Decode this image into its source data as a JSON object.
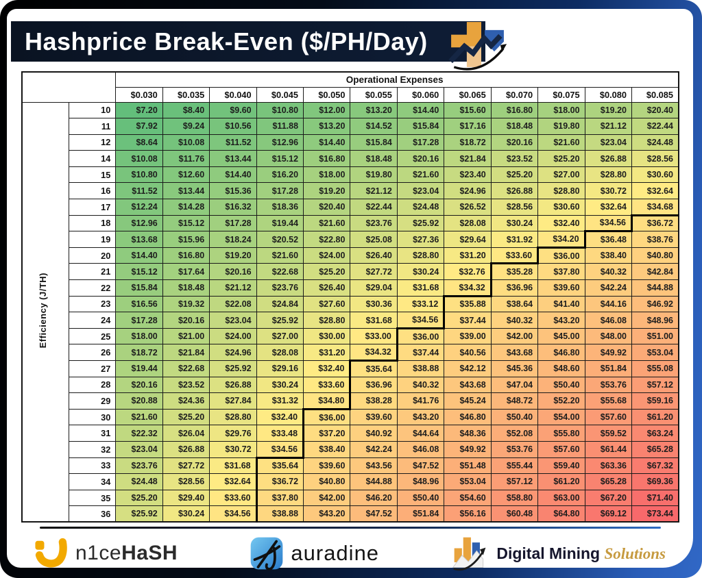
{
  "header": {
    "title": "Hashprice Break-Even ($/PH/Day)"
  },
  "chart_data": {
    "type": "heatmap",
    "title": "Hashprice Break-Even ($/PH/Day)",
    "x_label": "Operational Expenses",
    "y_label": "Efficiency (J/TH)",
    "x_categories": [
      "$0.030",
      "$0.035",
      "$0.040",
      "$0.045",
      "$0.050",
      "$0.055",
      "$0.060",
      "$0.065",
      "$0.070",
      "$0.075",
      "$0.080",
      "$0.085"
    ],
    "y_categories": [
      10,
      11,
      12,
      14,
      15,
      16,
      17,
      18,
      19,
      20,
      21,
      22,
      23,
      24,
      25,
      26,
      27,
      28,
      29,
      30,
      31,
      32,
      33,
      34,
      35,
      36
    ],
    "values": [
      [
        7.2,
        8.4,
        9.6,
        10.8,
        12.0,
        13.2,
        14.4,
        15.6,
        16.8,
        18.0,
        19.2,
        20.4
      ],
      [
        7.92,
        9.24,
        10.56,
        11.88,
        13.2,
        14.52,
        15.84,
        17.16,
        18.48,
        19.8,
        21.12,
        22.44
      ],
      [
        8.64,
        10.08,
        11.52,
        12.96,
        14.4,
        15.84,
        17.28,
        18.72,
        20.16,
        21.6,
        23.04,
        24.48
      ],
      [
        10.08,
        11.76,
        13.44,
        15.12,
        16.8,
        18.48,
        20.16,
        21.84,
        23.52,
        25.2,
        26.88,
        28.56
      ],
      [
        10.8,
        12.6,
        14.4,
        16.2,
        18.0,
        19.8,
        21.6,
        23.4,
        25.2,
        27.0,
        28.8,
        30.6
      ],
      [
        11.52,
        13.44,
        15.36,
        17.28,
        19.2,
        21.12,
        23.04,
        24.96,
        26.88,
        28.8,
        30.72,
        32.64
      ],
      [
        12.24,
        14.28,
        16.32,
        18.36,
        20.4,
        22.44,
        24.48,
        26.52,
        28.56,
        30.6,
        32.64,
        34.68
      ],
      [
        12.96,
        15.12,
        17.28,
        19.44,
        21.6,
        23.76,
        25.92,
        28.08,
        30.24,
        32.4,
        34.56,
        36.72
      ],
      [
        13.68,
        15.96,
        18.24,
        20.52,
        22.8,
        25.08,
        27.36,
        29.64,
        31.92,
        34.2,
        36.48,
        38.76
      ],
      [
        14.4,
        16.8,
        19.2,
        21.6,
        24.0,
        26.4,
        28.8,
        31.2,
        33.6,
        36.0,
        38.4,
        40.8
      ],
      [
        15.12,
        17.64,
        20.16,
        22.68,
        25.2,
        27.72,
        30.24,
        32.76,
        35.28,
        37.8,
        40.32,
        42.84
      ],
      [
        15.84,
        18.48,
        21.12,
        23.76,
        26.4,
        29.04,
        31.68,
        34.32,
        36.96,
        39.6,
        42.24,
        44.88
      ],
      [
        16.56,
        19.32,
        22.08,
        24.84,
        27.6,
        30.36,
        33.12,
        35.88,
        38.64,
        41.4,
        44.16,
        46.92
      ],
      [
        17.28,
        20.16,
        23.04,
        25.92,
        28.8,
        31.68,
        34.56,
        37.44,
        40.32,
        43.2,
        46.08,
        48.96
      ],
      [
        18.0,
        21.0,
        24.0,
        27.0,
        30.0,
        33.0,
        36.0,
        39.0,
        42.0,
        45.0,
        48.0,
        51.0
      ],
      [
        18.72,
        21.84,
        24.96,
        28.08,
        31.2,
        34.32,
        37.44,
        40.56,
        43.68,
        46.8,
        49.92,
        53.04
      ],
      [
        19.44,
        22.68,
        25.92,
        29.16,
        32.4,
        35.64,
        38.88,
        42.12,
        45.36,
        48.6,
        51.84,
        55.08
      ],
      [
        20.16,
        23.52,
        26.88,
        30.24,
        33.6,
        36.96,
        40.32,
        43.68,
        47.04,
        50.4,
        53.76,
        57.12
      ],
      [
        20.88,
        24.36,
        27.84,
        31.32,
        34.8,
        38.28,
        41.76,
        45.24,
        48.72,
        52.2,
        55.68,
        59.16
      ],
      [
        21.6,
        25.2,
        28.8,
        32.4,
        36.0,
        39.6,
        43.2,
        46.8,
        50.4,
        54.0,
        57.6,
        61.2
      ],
      [
        22.32,
        26.04,
        29.76,
        33.48,
        37.2,
        40.92,
        44.64,
        48.36,
        52.08,
        55.8,
        59.52,
        63.24
      ],
      [
        23.04,
        26.88,
        30.72,
        34.56,
        38.4,
        42.24,
        46.08,
        49.92,
        53.76,
        57.6,
        61.44,
        65.28
      ],
      [
        23.76,
        27.72,
        31.68,
        35.64,
        39.6,
        43.56,
        47.52,
        51.48,
        55.44,
        59.4,
        63.36,
        67.32
      ],
      [
        24.48,
        28.56,
        32.64,
        36.72,
        40.8,
        44.88,
        48.96,
        53.04,
        57.12,
        61.2,
        65.28,
        69.36
      ],
      [
        25.2,
        29.4,
        33.6,
        37.8,
        42.0,
        46.2,
        50.4,
        54.6,
        58.8,
        63.0,
        67.2,
        71.4
      ],
      [
        25.92,
        30.24,
        34.56,
        38.88,
        43.2,
        47.52,
        51.84,
        56.16,
        60.48,
        64.8,
        69.12,
        73.44
      ]
    ],
    "value_prefix": "$",
    "break_even_threshold": 35,
    "colorscale": {
      "low_color": "#63BE7B",
      "mid_color": "#FFEB84",
      "high_color": "#F8696B",
      "min": 7.2,
      "mid": 32.5,
      "max": 73.44
    },
    "grid_color": "#1a1a1a",
    "break_even_line_color": "#000000"
  },
  "footer": {
    "nicehash": {
      "wordmark_regular": "n1ce",
      "wordmark_bold": "HaSH",
      "brand_color": "#F2A900"
    },
    "auradine": {
      "wordmark": "auradine",
      "brand_color": "#3D8FD6"
    },
    "digital_mining": {
      "name_primary": "Digital Mining ",
      "name_accent": "Solutions",
      "accent_color": "#c69a3f"
    }
  }
}
